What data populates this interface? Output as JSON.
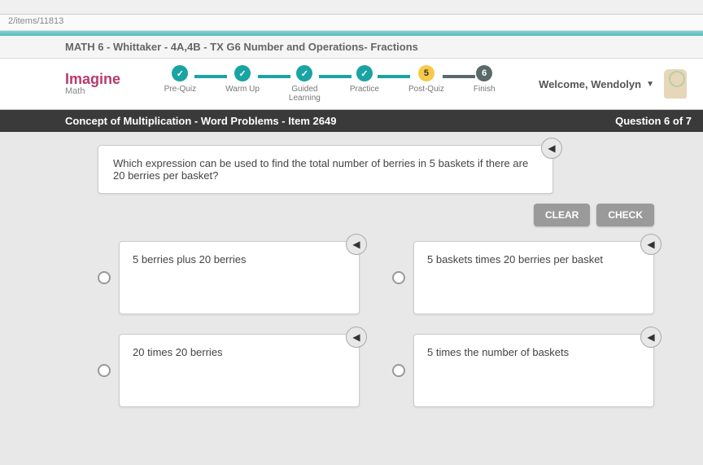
{
  "url_fragment": "2/items/11813",
  "course_title": "MATH 6 - Whittaker - 4A,4B - TX G6 Number and Operations- Fractions",
  "logo": {
    "main": "Imagine",
    "sub": "Math"
  },
  "steps": [
    {
      "label": "Pre-Quiz",
      "state": "done"
    },
    {
      "label": "Warm Up",
      "state": "done"
    },
    {
      "label": "Guided\nLearning",
      "state": "done"
    },
    {
      "label": "Practice",
      "state": "done"
    },
    {
      "label": "Post-Quiz",
      "state": "current",
      "num": "5"
    },
    {
      "label": "Finish",
      "state": "future",
      "num": "6"
    }
  ],
  "welcome": "Welcome, Wendolyn",
  "lesson_title": "Concept of Multiplication - Word Problems - Item 2649",
  "question_counter": "Question 6 of 7",
  "question_text": "Which expression can be used to find the total number of berries in 5 baskets if there are 20 berries per basket?",
  "buttons": {
    "clear": "CLEAR",
    "check": "CHECK"
  },
  "answers": [
    "5 berries plus 20 berries",
    "5 baskets times 20 berries per basket",
    "20 times 20 berries",
    "5 times the number of baskets"
  ],
  "audio_glyph": "◀"
}
